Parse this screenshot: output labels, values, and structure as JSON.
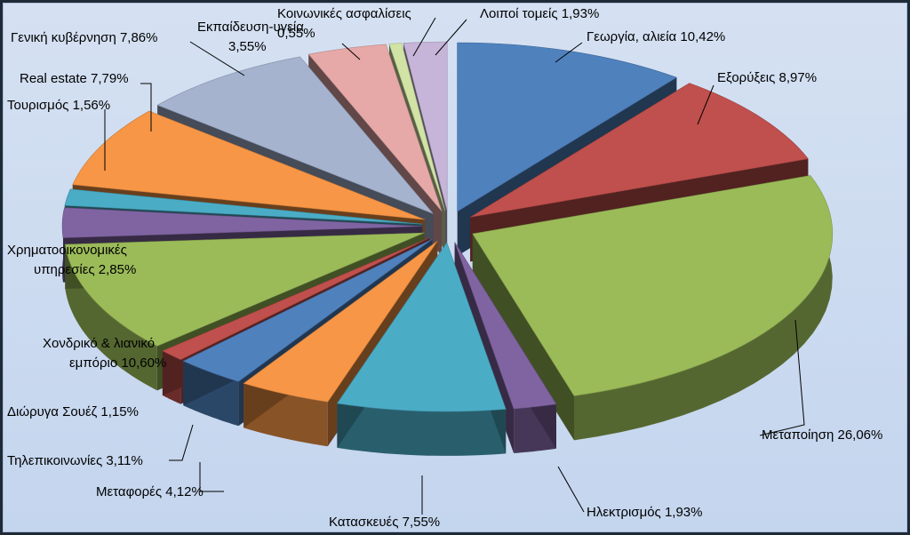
{
  "chart_data": {
    "type": "pie",
    "style": "3d-exploded",
    "unit": "%",
    "slices": [
      {
        "label": "Γεωργία, αλιεία 10,42%",
        "name": "Γεωργία, αλιεία",
        "value": 10.42,
        "color": "#4f81bd"
      },
      {
        "label": "Εξορύξεις 8,97%",
        "name": "Εξορύξεις",
        "value": 8.97,
        "color": "#c0504d"
      },
      {
        "label": "Μεταποίηση 26,06%",
        "name": "Μεταποίηση",
        "value": 26.06,
        "color": "#9bbb59"
      },
      {
        "label": "Ηλεκτρισμός 1,93%",
        "name": "Ηλεκτρισμός",
        "value": 1.93,
        "color": "#8064a2"
      },
      {
        "label": "Κατασκευές 7,55%",
        "name": "Κατασκευές",
        "value": 7.55,
        "color": "#4bacc6"
      },
      {
        "label": "Μεταφορές 4,12%",
        "name": "Μεταφορές",
        "value": 4.12,
        "color": "#f79646"
      },
      {
        "label": "Τηλεπικοινωνίες 3,11%",
        "name": "Τηλεπικοινωνίες",
        "value": 3.11,
        "color": "#4f81bd"
      },
      {
        "label": "Διώρυγα Σουέζ 1,15%",
        "name": "Διώρυγα Σουέζ",
        "value": 1.15,
        "color": "#c0504d"
      },
      {
        "label": "Χονδρικό & λιανικό εμπόριο 10,60%",
        "lines": [
          "Χονδρικό & λιανικό",
          "εμπόριο 10,60%"
        ],
        "name": "Χονδρικό & λιανικό εμπόριο",
        "value": 10.6,
        "color": "#9bbb59"
      },
      {
        "label": "Χρηματοοικονομικές υπηρεσίες 2,85%",
        "lines": [
          "Χρηματοοικονομικές",
          "υπηρεσίες 2,85%"
        ],
        "name": "Χρηματοοικονομικές υπηρεσίες",
        "value": 2.85,
        "color": "#8064a2"
      },
      {
        "label": "Τουρισμός 1,56%",
        "name": "Τουρισμός",
        "value": 1.56,
        "color": "#4bacc6"
      },
      {
        "label": "Real estate 7,79%",
        "name": "Real estate",
        "value": 7.79,
        "color": "#f79646"
      },
      {
        "label": "Γενική κυβέρνηση 7,86%",
        "name": "Γενική κυβέρνηση",
        "value": 7.86,
        "color": "#a5b3cf"
      },
      {
        "label": "Εκπαίδευση-υγεία 3,55%",
        "lines": [
          "Εκπαίδευση-υγεία",
          "3,55%"
        ],
        "name": "Εκπαίδευση-υγεία",
        "value": 3.55,
        "color": "#e6a9a8"
      },
      {
        "label": "Κοινωνικές ασφαλίσεις 0,55%",
        "lines": [
          "Κοινωνικές ασφαλίσεις",
          "0,55%"
        ],
        "name": "Κοινωνικές ασφαλίσεις",
        "value": 0.55,
        "color": "#d1e3a5"
      },
      {
        "label": "Λοιποί τομείς 1,93%",
        "name": "Λοιποί τομείς",
        "value": 1.93,
        "color": "#c6b5d8"
      }
    ]
  }
}
